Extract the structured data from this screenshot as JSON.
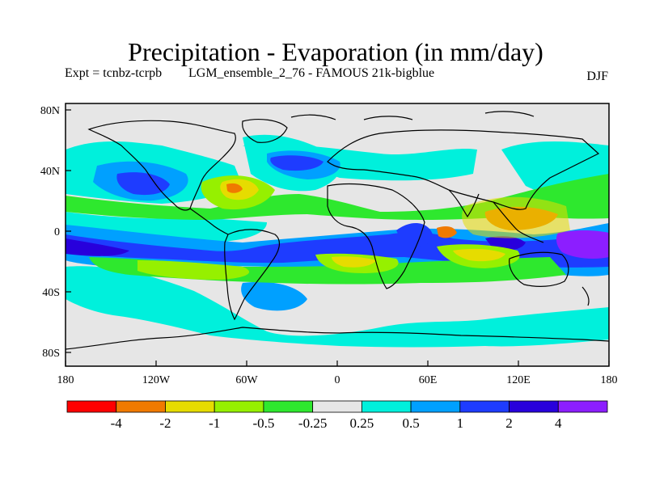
{
  "header": {
    "title": "Precipitation - Evaporation (in mm/day)",
    "experiment": "Expt = tcnbz-tcrpb",
    "run": "LGM_ensemble_2_76 - FAMOUS 21k-bigblue",
    "season": "DJF"
  },
  "axes": {
    "lat_labels": [
      "80N",
      "40N",
      "0",
      "40S",
      "80S"
    ],
    "lon_labels": [
      "180",
      "120W",
      "60W",
      "0",
      "60E",
      "120E",
      "180"
    ]
  },
  "colorbar": {
    "labels": [
      "-4",
      "-2",
      "-1",
      "-0.5",
      "-0.25",
      "0.25",
      "0.5",
      "1",
      "2",
      "4"
    ],
    "colors": [
      "#ff0000",
      "#f07a00",
      "#e6dc00",
      "#96f000",
      "#2ee82e",
      "#e6e6e6",
      "#00f0dc",
      "#00a0ff",
      "#1e3cff",
      "#2800dc",
      "#8c1eff"
    ]
  },
  "colors": {
    "land_background": "#e6e6e6",
    "coastline": "#000000"
  }
}
